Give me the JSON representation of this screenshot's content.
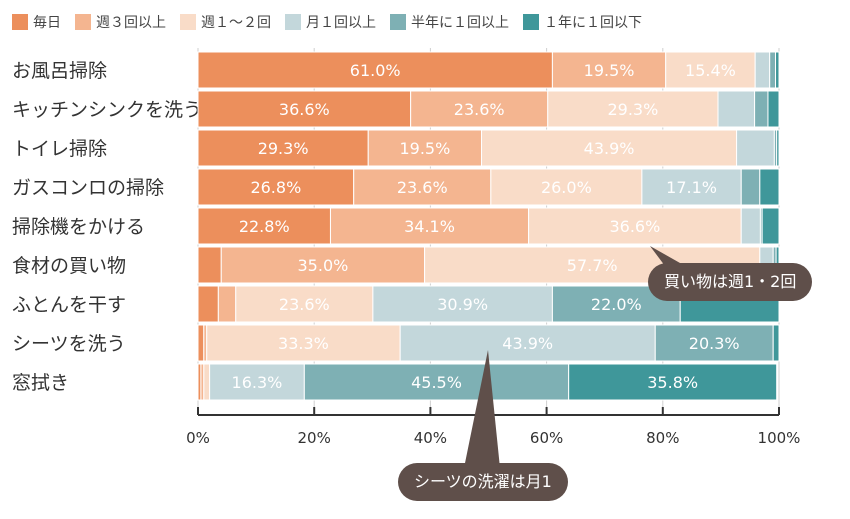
{
  "legend": {
    "items": [
      {
        "label": "毎日",
        "color": "#ec8f5c"
      },
      {
        "label": "週３回以上",
        "color": "#f4b590"
      },
      {
        "label": "週１～２回",
        "color": "#f9dcc8"
      },
      {
        "label": "月１回以上",
        "color": "#c3d7db"
      },
      {
        "label": "半年に１回以上",
        "color": "#7eb0b4"
      },
      {
        "label": "１年に１回以下",
        "color": "#3f979a"
      }
    ]
  },
  "callouts": {
    "shopping": "買い物は週1・2回",
    "sheets": "シーツの洗濯は月1"
  },
  "chart_data": {
    "type": "bar",
    "orientation": "horizontal",
    "stacked": true,
    "categories": [
      "お風呂掃除",
      "キッチンシンクを洗う",
      "トイレ掃除",
      "ガスコンロの掃除",
      "掃除機をかける",
      "食材の買い物",
      "ふとんを干す",
      "シーツを洗う",
      "窓拭き"
    ],
    "series": [
      {
        "name": "毎日",
        "color": "#ec8f5c",
        "values": [
          61.0,
          36.6,
          29.3,
          26.8,
          22.8,
          4.0,
          3.5,
          1.0,
          0.5
        ]
      },
      {
        "name": "週３回以上",
        "color": "#f4b590",
        "values": [
          19.5,
          23.6,
          19.5,
          23.6,
          34.1,
          35.0,
          3.0,
          0.5,
          0.5
        ]
      },
      {
        "name": "週１～２回",
        "color": "#f9dcc8",
        "values": [
          15.4,
          29.3,
          43.9,
          26.0,
          36.6,
          57.7,
          23.6,
          33.3,
          1.0
        ]
      },
      {
        "name": "月１回以上",
        "color": "#c3d7db",
        "values": [
          2.5,
          6.3,
          6.5,
          17.1,
          3.3,
          2.3,
          30.9,
          43.9,
          16.3
        ]
      },
      {
        "name": "半年に１回以上",
        "color": "#7eb0b4",
        "values": [
          1.0,
          2.3,
          0.4,
          3.2,
          0.3,
          0.5,
          22.0,
          20.3,
          45.5
        ]
      },
      {
        "name": "１年に１回以下",
        "color": "#3f979a",
        "values": [
          0.6,
          1.9,
          0.4,
          3.3,
          2.9,
          0.5,
          17.0,
          1.0,
          35.8
        ]
      }
    ],
    "labels_shown": [
      [
        "61.0%",
        "19.5%",
        "15.4%",
        "",
        "",
        ""
      ],
      [
        "36.6%",
        "23.6%",
        "29.3%",
        "",
        "",
        ""
      ],
      [
        "29.3%",
        "19.5%",
        "43.9%",
        "",
        "",
        ""
      ],
      [
        "26.8%",
        "23.6%",
        "26.0%",
        "17.1%",
        "",
        ""
      ],
      [
        "22.8%",
        "34.1%",
        "36.6%",
        "",
        "",
        ""
      ],
      [
        "",
        "35.0%",
        "57.7%",
        "",
        "",
        ""
      ],
      [
        "",
        "",
        "23.6%",
        "30.9%",
        "22.0%",
        ""
      ],
      [
        "",
        "",
        "33.3%",
        "43.9%",
        "20.3%",
        ""
      ],
      [
        "",
        "",
        "",
        "16.3%",
        "45.5%",
        "35.8%"
      ]
    ],
    "x_ticks": [
      "0%",
      "20%",
      "40%",
      "60%",
      "80%",
      "100%"
    ],
    "xlim": [
      0,
      100
    ],
    "grid": true,
    "legend_position": "top"
  }
}
